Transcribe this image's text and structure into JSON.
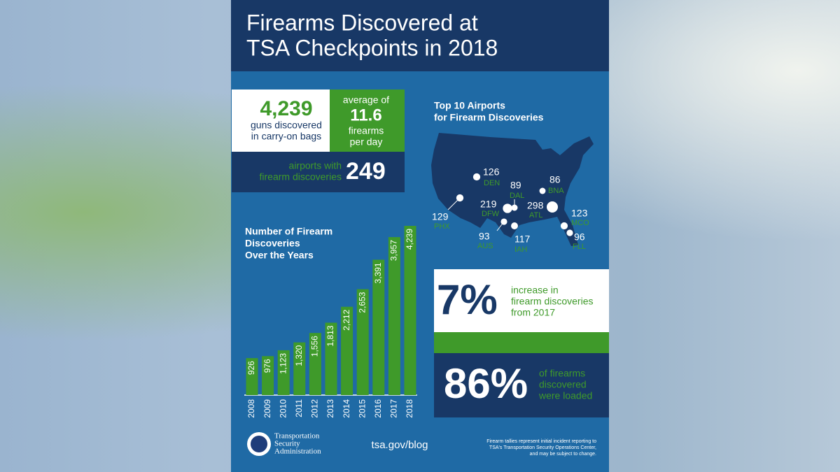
{
  "header": {
    "title_lines": [
      "Firearms Discovered at",
      "TSA Checkpoints in 2018"
    ]
  },
  "stats": {
    "guns": {
      "value": "4,239",
      "lines": [
        "guns discovered",
        "in carry-on bags"
      ]
    },
    "average": {
      "lead": "average of",
      "value": "11.6",
      "lines": [
        "firearms",
        "per day"
      ]
    },
    "airports": {
      "lines": [
        "airports with",
        "firearm discoveries"
      ],
      "value": "249"
    },
    "increase": {
      "value": "7%",
      "lines": [
        "increase in",
        "firearm discoveries",
        "from 2017"
      ]
    },
    "loaded": {
      "value": "86%",
      "lines": [
        "of firearms",
        "discovered",
        "were loaded"
      ]
    }
  },
  "map": {
    "title_lines": [
      "Top 10 Airports",
      "for Firearm Discoveries"
    ],
    "airports": [
      {
        "code": "DEN",
        "count": 126
      },
      {
        "code": "PHX",
        "count": 129
      },
      {
        "code": "DFW",
        "count": 219
      },
      {
        "code": "DAL",
        "count": 89
      },
      {
        "code": "AUS",
        "count": 93
      },
      {
        "code": "IAH",
        "count": 117
      },
      {
        "code": "ATL",
        "count": 298
      },
      {
        "code": "BNA",
        "count": 86
      },
      {
        "code": "MCO",
        "count": 123
      },
      {
        "code": "FLL",
        "count": 96
      }
    ]
  },
  "chart_data": {
    "type": "bar",
    "title_lines": [
      "Number of Firearm",
      "Discoveries",
      "Over the Years"
    ],
    "categories": [
      "2008",
      "2009",
      "2010",
      "2011",
      "2012",
      "2013",
      "2014",
      "2015",
      "2016",
      "2017",
      "2018"
    ],
    "values": [
      926,
      976,
      1123,
      1320,
      1556,
      1813,
      2212,
      2653,
      3391,
      3957,
      4239
    ],
    "value_labels": [
      "926",
      "976",
      "1,123",
      "1,320",
      "1,556",
      "1,813",
      "2,212",
      "2,653",
      "3,391",
      "3,957",
      "4,239"
    ],
    "color": "#3f9a2a"
  },
  "footer": {
    "agency_lines": [
      "Transportation",
      "Security",
      "Administration"
    ],
    "url": "tsa.gov/blog",
    "note_lines": [
      "Firearm tallies represent initial incident reporting to",
      "TSA's Transportation Security Operations Center,",
      "and may be subject to change."
    ]
  }
}
